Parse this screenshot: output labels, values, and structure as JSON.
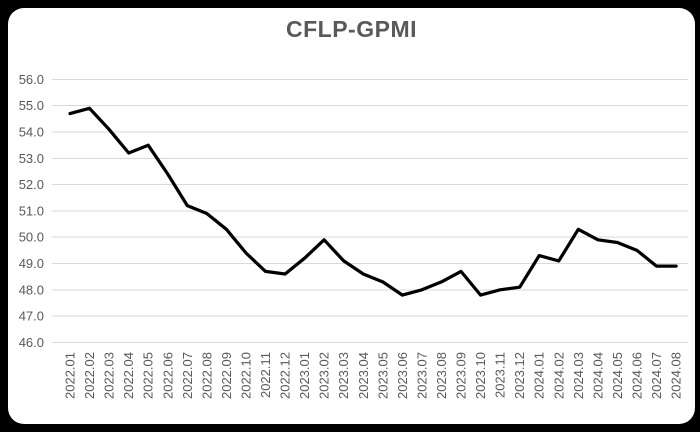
{
  "title": "CFLP-GPMI",
  "colors": {
    "frame_background": "#000000",
    "card_background": "#ffffff",
    "title_text": "#595959",
    "axis_text": "#595959",
    "gridline": "#d9d9d9",
    "line": "#000000"
  },
  "chart_data": {
    "type": "line",
    "title": "CFLP-GPMI",
    "series_name": "CFLP-GPMI",
    "categories": [
      "2022.01",
      "2022.02",
      "2022.03",
      "2022.04",
      "2022.05",
      "2022.06",
      "2022.07",
      "2022.08",
      "2022.09",
      "2022.10",
      "2022.11",
      "2022.12",
      "2023.01",
      "2023.02",
      "2023.03",
      "2023.04",
      "2023.05",
      "2023.06",
      "2023.07",
      "2023.08",
      "2023.09",
      "2023.10",
      "2023.11",
      "2023.12",
      "2024.01",
      "2024.02",
      "2024.03",
      "2024.04",
      "2024.05",
      "2024.06",
      "2024.07",
      "2024.08"
    ],
    "values": [
      54.7,
      54.9,
      54.1,
      53.2,
      53.5,
      52.4,
      51.2,
      50.9,
      50.3,
      49.4,
      48.7,
      48.6,
      49.2,
      49.9,
      49.1,
      48.6,
      48.3,
      47.8,
      48.0,
      48.3,
      48.7,
      47.8,
      48.0,
      48.1,
      49.3,
      49.1,
      50.3,
      49.9,
      49.8,
      49.5,
      48.9,
      48.9
    ],
    "xlabel": "",
    "ylabel": "",
    "ylim": [
      46.0,
      56.0
    ],
    "ytick_step": 1.0,
    "ytick_labels": [
      "56.0",
      "55.0",
      "54.0",
      "53.0",
      "52.0",
      "51.0",
      "50.0",
      "49.0",
      "48.0",
      "47.0",
      "46.0"
    ],
    "grid": true,
    "legend": false,
    "marker": "none",
    "line_width": 3.25
  }
}
